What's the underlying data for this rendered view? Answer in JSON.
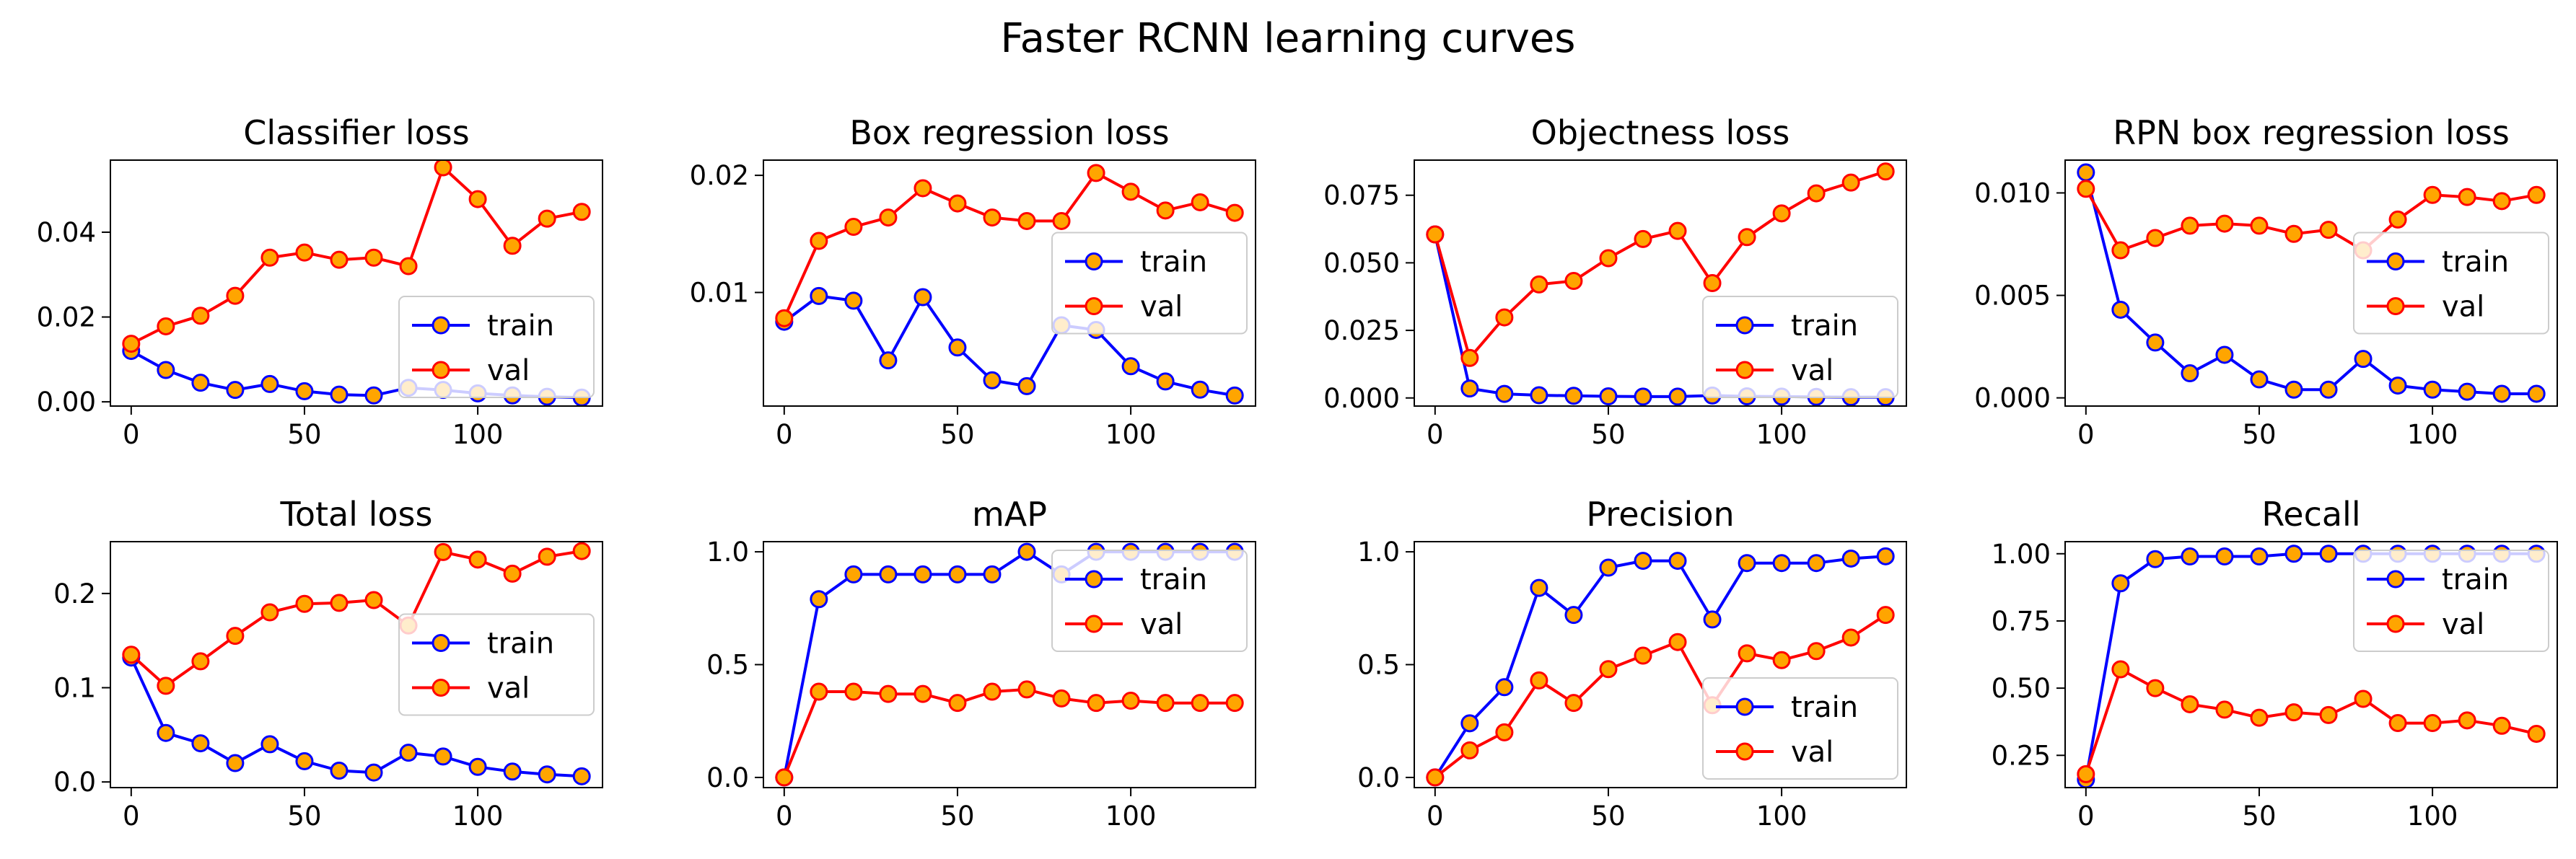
{
  "figure": {
    "title": "Faster RCNN learning curves"
  },
  "colors": {
    "train_line": "#0000ff",
    "val_line": "#ff0000",
    "marker_fill": "#ffa500",
    "axes": "#000000",
    "background": "#ffffff"
  },
  "legend_labels": {
    "train": "train",
    "val": "val"
  },
  "chart_data": [
    {
      "type": "line",
      "title": "Classifier loss",
      "xlabel": "",
      "ylabel": "",
      "x": [
        0,
        10,
        20,
        30,
        40,
        50,
        60,
        70,
        80,
        90,
        100,
        110,
        120,
        130
      ],
      "xlim": [
        -6,
        136
      ],
      "ylim": [
        -0.001,
        0.057
      ],
      "xticks": [
        0,
        50,
        100
      ],
      "xtick_labels": [
        "0",
        "50",
        "100"
      ],
      "yticks": [
        0.0,
        0.02,
        0.04
      ],
      "ytick_labels": [
        "0.00",
        "0.02",
        "0.04"
      ],
      "legend_position": "lower right",
      "series": [
        {
          "name": "train",
          "values": [
            0.012,
            0.0075,
            0.0045,
            0.0028,
            0.0042,
            0.0025,
            0.0017,
            0.0015,
            0.0033,
            0.0028,
            0.002,
            0.0015,
            0.0012,
            0.001
          ]
        },
        {
          "name": "val",
          "values": [
            0.0137,
            0.0178,
            0.0203,
            0.025,
            0.034,
            0.0352,
            0.0335,
            0.034,
            0.032,
            0.0553,
            0.0478,
            0.0368,
            0.0432,
            0.0448
          ]
        }
      ]
    },
    {
      "type": "line",
      "title": "Box regression loss",
      "xlabel": "",
      "ylabel": "",
      "x": [
        0,
        10,
        20,
        30,
        40,
        50,
        60,
        70,
        80,
        90,
        100,
        110,
        120,
        130
      ],
      "xlim": [
        -6,
        136
      ],
      "ylim": [
        0.0003,
        0.0213
      ],
      "xticks": [
        0,
        50,
        100
      ],
      "xtick_labels": [
        "0",
        "50",
        "100"
      ],
      "yticks": [
        0.01,
        0.02
      ],
      "ytick_labels": [
        "0.01",
        "0.02"
      ],
      "legend_position": "center right",
      "series": [
        {
          "name": "train",
          "values": [
            0.0075,
            0.0097,
            0.0093,
            0.0042,
            0.0096,
            0.0053,
            0.0025,
            0.002,
            0.0072,
            0.0068,
            0.0037,
            0.0024,
            0.0017,
            0.0012
          ]
        },
        {
          "name": "val",
          "values": [
            0.0078,
            0.0144,
            0.0156,
            0.0164,
            0.0189,
            0.0176,
            0.0164,
            0.0161,
            0.0161,
            0.0202,
            0.0186,
            0.017,
            0.0177,
            0.0168
          ]
        }
      ]
    },
    {
      "type": "line",
      "title": "Objectness loss",
      "xlabel": "",
      "ylabel": "",
      "x": [
        0,
        10,
        20,
        30,
        40,
        50,
        60,
        70,
        80,
        90,
        100,
        110,
        120,
        130
      ],
      "xlim": [
        -6,
        136
      ],
      "ylim": [
        -0.003,
        0.088
      ],
      "xticks": [
        0,
        50,
        100
      ],
      "xtick_labels": [
        "0",
        "50",
        "100"
      ],
      "yticks": [
        0.0,
        0.025,
        0.05,
        0.075
      ],
      "ytick_labels": [
        "0.000",
        "0.025",
        "0.050",
        "0.075"
      ],
      "legend_position": "lower right",
      "series": [
        {
          "name": "train",
          "values": [
            0.0605,
            0.0035,
            0.0015,
            0.001,
            0.0008,
            0.0006,
            0.0005,
            0.0005,
            0.0009,
            0.0006,
            0.0005,
            0.0004,
            0.0003,
            0.0003
          ]
        },
        {
          "name": "val",
          "values": [
            0.0605,
            0.0148,
            0.0298,
            0.042,
            0.0433,
            0.0517,
            0.0588,
            0.0618,
            0.0425,
            0.0595,
            0.0683,
            0.0757,
            0.0797,
            0.0838
          ]
        }
      ]
    },
    {
      "type": "line",
      "title": "RPN box regression loss",
      "xlabel": "",
      "ylabel": "",
      "x": [
        0,
        10,
        20,
        30,
        40,
        50,
        60,
        70,
        80,
        90,
        100,
        110,
        120,
        130
      ],
      "xlim": [
        -6,
        136
      ],
      "ylim": [
        -0.0004,
        0.0116
      ],
      "xticks": [
        0,
        50,
        100
      ],
      "xtick_labels": [
        "0",
        "50",
        "100"
      ],
      "yticks": [
        0.0,
        0.005,
        0.01
      ],
      "ytick_labels": [
        "0.000",
        "0.005",
        "0.010"
      ],
      "legend_position": "center right",
      "series": [
        {
          "name": "train",
          "values": [
            0.011,
            0.0043,
            0.0027,
            0.0012,
            0.0021,
            0.0009,
            0.0004,
            0.0004,
            0.0019,
            0.0006,
            0.0004,
            0.0003,
            0.0002,
            0.0002
          ]
        },
        {
          "name": "val",
          "values": [
            0.0102,
            0.0072,
            0.0078,
            0.0084,
            0.0085,
            0.0084,
            0.008,
            0.0082,
            0.0072,
            0.0087,
            0.0099,
            0.0098,
            0.0096,
            0.0099
          ]
        }
      ]
    },
    {
      "type": "line",
      "title": "Total loss",
      "xlabel": "",
      "ylabel": "",
      "x": [
        0,
        10,
        20,
        30,
        40,
        50,
        60,
        70,
        80,
        90,
        100,
        110,
        120,
        130
      ],
      "xlim": [
        -6,
        136
      ],
      "ylim": [
        -0.006,
        0.255
      ],
      "xticks": [
        0,
        50,
        100
      ],
      "xtick_labels": [
        "0",
        "50",
        "100"
      ],
      "yticks": [
        0.0,
        0.1,
        0.2
      ],
      "ytick_labels": [
        "0.0",
        "0.1",
        "0.2"
      ],
      "legend_position": "center right",
      "series": [
        {
          "name": "train",
          "values": [
            0.132,
            0.052,
            0.041,
            0.02,
            0.04,
            0.022,
            0.012,
            0.01,
            0.031,
            0.027,
            0.016,
            0.011,
            0.008,
            0.006
          ]
        },
        {
          "name": "val",
          "values": [
            0.135,
            0.102,
            0.128,
            0.155,
            0.18,
            0.189,
            0.19,
            0.193,
            0.166,
            0.244,
            0.236,
            0.221,
            0.239,
            0.245
          ]
        }
      ]
    },
    {
      "type": "line",
      "title": "mAP",
      "xlabel": "",
      "ylabel": "",
      "x": [
        0,
        10,
        20,
        30,
        40,
        50,
        60,
        70,
        80,
        90,
        100,
        110,
        120,
        130
      ],
      "xlim": [
        -6,
        136
      ],
      "ylim": [
        -0.045,
        1.045
      ],
      "xticks": [
        0,
        50,
        100
      ],
      "xtick_labels": [
        "0",
        "50",
        "100"
      ],
      "yticks": [
        0.0,
        0.5,
        1.0
      ],
      "ytick_labels": [
        "0.0",
        "0.5",
        "1.0"
      ],
      "legend_position": "upper right",
      "series": [
        {
          "name": "train",
          "values": [
            0.0,
            0.79,
            0.9,
            0.9,
            0.9,
            0.9,
            0.9,
            1.0,
            0.9,
            1.0,
            1.0,
            1.0,
            1.0,
            1.0
          ]
        },
        {
          "name": "val",
          "values": [
            0.0,
            0.38,
            0.38,
            0.37,
            0.37,
            0.33,
            0.38,
            0.39,
            0.35,
            0.33,
            0.34,
            0.33,
            0.33,
            0.33
          ]
        }
      ]
    },
    {
      "type": "line",
      "title": "Precision",
      "xlabel": "",
      "ylabel": "",
      "x": [
        0,
        10,
        20,
        30,
        40,
        50,
        60,
        70,
        80,
        90,
        100,
        110,
        120,
        130
      ],
      "xlim": [
        -6,
        136
      ],
      "ylim": [
        -0.045,
        1.045
      ],
      "xticks": [
        0,
        50,
        100
      ],
      "xtick_labels": [
        "0",
        "50",
        "100"
      ],
      "yticks": [
        0.0,
        0.5,
        1.0
      ],
      "ytick_labels": [
        "0.0",
        "0.5",
        "1.0"
      ],
      "legend_position": "lower right",
      "series": [
        {
          "name": "train",
          "values": [
            0.0,
            0.24,
            0.4,
            0.84,
            0.72,
            0.93,
            0.96,
            0.96,
            0.7,
            0.95,
            0.95,
            0.95,
            0.97,
            0.98
          ]
        },
        {
          "name": "val",
          "values": [
            0.0,
            0.12,
            0.2,
            0.43,
            0.33,
            0.48,
            0.54,
            0.6,
            0.32,
            0.55,
            0.52,
            0.56,
            0.62,
            0.72
          ]
        }
      ]
    },
    {
      "type": "line",
      "title": "Recall",
      "xlabel": "",
      "ylabel": "",
      "x": [
        0,
        10,
        20,
        30,
        40,
        50,
        60,
        70,
        80,
        90,
        100,
        110,
        120,
        130
      ],
      "xlim": [
        -6,
        136
      ],
      "ylim": [
        0.13,
        1.045
      ],
      "xticks": [
        0,
        50,
        100
      ],
      "xtick_labels": [
        "0",
        "50",
        "100"
      ],
      "yticks": [
        0.25,
        0.5,
        0.75,
        1.0
      ],
      "ytick_labels": [
        "0.25",
        "0.50",
        "0.75",
        "1.00"
      ],
      "legend_position": "upper right",
      "series": [
        {
          "name": "train",
          "values": [
            0.16,
            0.89,
            0.98,
            0.99,
            0.99,
            0.99,
            1.0,
            1.0,
            1.0,
            1.0,
            1.0,
            1.0,
            1.0,
            1.0
          ]
        },
        {
          "name": "val",
          "values": [
            0.18,
            0.57,
            0.5,
            0.44,
            0.42,
            0.39,
            0.41,
            0.4,
            0.46,
            0.37,
            0.37,
            0.38,
            0.36,
            0.33
          ]
        }
      ]
    }
  ]
}
